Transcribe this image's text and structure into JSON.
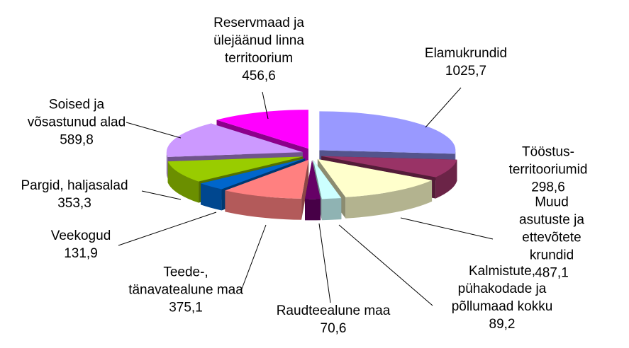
{
  "chart_data": {
    "type": "pie3d",
    "categories": [
      "Elamukrundid",
      "Tööstus-\nterritooriumid",
      "Muud asutuste ja\nettevõtete krundid",
      "Kalmistute,\npühakodade ja\npõllumaad kokku",
      "Raudteealune maa",
      "Teede-,\ntänavatealune maa",
      "Veekogud",
      "Pargid, haljasalad",
      "Soised ja\nvõsastunud alad",
      "Reservmaad ja\nülejäänud linna\nterritoorium"
    ],
    "values": [
      1025.7,
      298.6,
      487.1,
      89.2,
      70.6,
      375.1,
      131.9,
      353.3,
      589.8,
      456.6
    ],
    "value_labels": [
      "1025,7",
      "298,6",
      "487,1",
      "89,2",
      "70,6",
      "375,1",
      "131,9",
      "353,3",
      "589,8",
      "456,6"
    ],
    "colors": [
      "#9999ff",
      "#993366",
      "#ffffcc",
      "#ccffff",
      "#660066",
      "#ff8080",
      "#0066cc",
      "#99cc00",
      "#cc99ff",
      "#ff00ff"
    ]
  }
}
